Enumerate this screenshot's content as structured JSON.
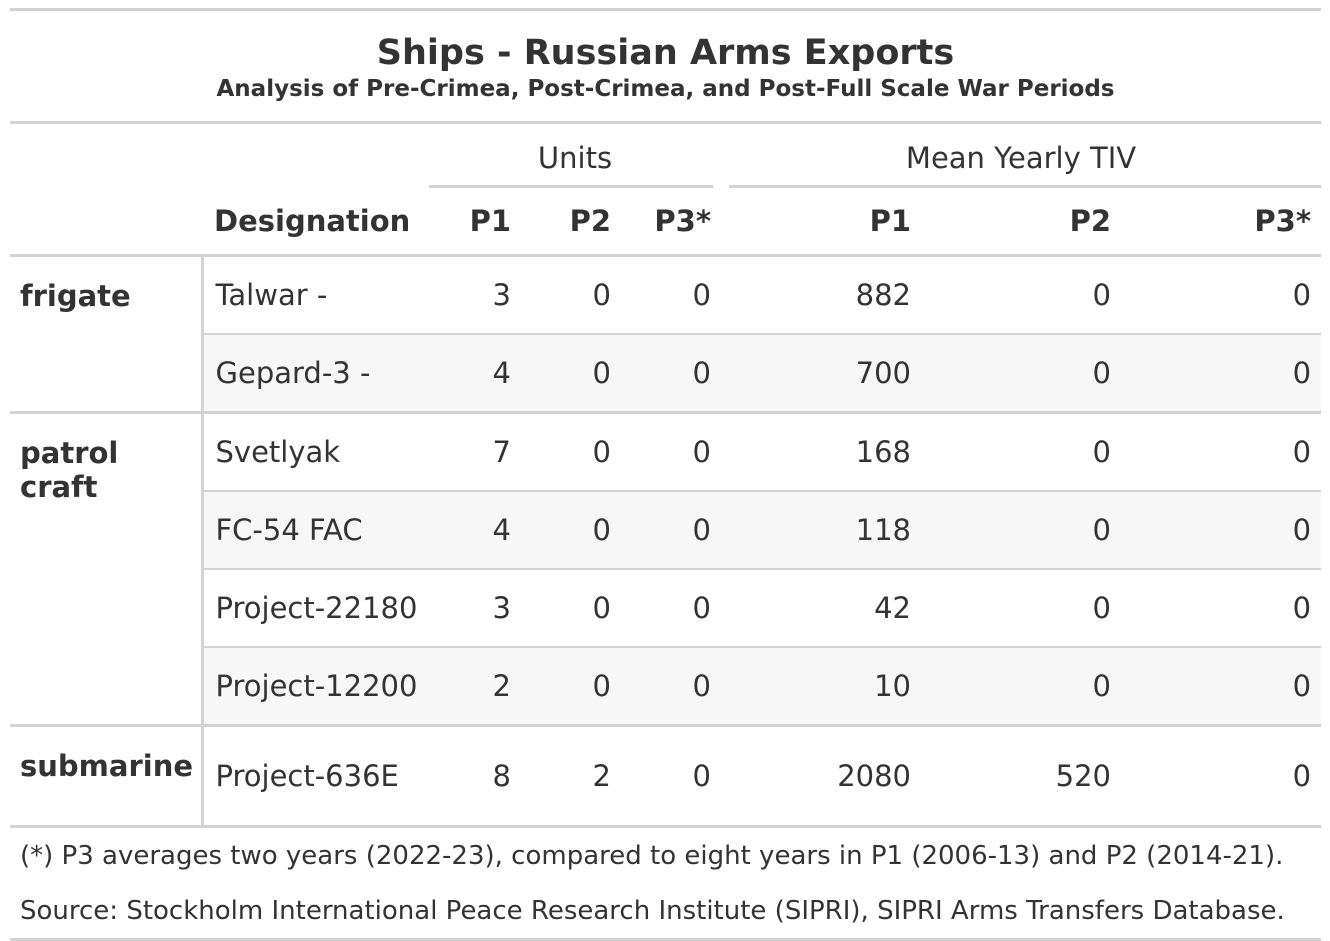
{
  "title": "Ships - Russian Arms Exports",
  "subtitle": "Analysis of Pre-Crimea, Post-Crimea, and Post-Full Scale War Periods",
  "spanners": {
    "units": "Units",
    "tiv": "Mean Yearly TIV"
  },
  "columns": {
    "designation": "Designation",
    "u_p1": "P1",
    "u_p2": "P2",
    "u_p3": "P3*",
    "t_p1": "P1",
    "t_p2": "P2",
    "t_p3": "P3*"
  },
  "groups": [
    {
      "name": "frigate",
      "rows": [
        {
          "designation": "Talwar -",
          "u_p1": "3",
          "u_p2": "0",
          "u_p3": "0",
          "t_p1": "882",
          "t_p2": "0",
          "t_p3": "0"
        },
        {
          "designation": "Gepard-3 -",
          "u_p1": "4",
          "u_p2": "0",
          "u_p3": "0",
          "t_p1": "700",
          "t_p2": "0",
          "t_p3": "0"
        }
      ]
    },
    {
      "name": "patrol craft",
      "rows": [
        {
          "designation": "Svetlyak",
          "u_p1": "7",
          "u_p2": "0",
          "u_p3": "0",
          "t_p1": "168",
          "t_p2": "0",
          "t_p3": "0"
        },
        {
          "designation": "FC-54 FAC",
          "u_p1": "4",
          "u_p2": "0",
          "u_p3": "0",
          "t_p1": "118",
          "t_p2": "0",
          "t_p3": "0"
        },
        {
          "designation": "Project-22180",
          "u_p1": "3",
          "u_p2": "0",
          "u_p3": "0",
          "t_p1": "42",
          "t_p2": "0",
          "t_p3": "0"
        },
        {
          "designation": "Project-12200",
          "u_p1": "2",
          "u_p2": "0",
          "u_p3": "0",
          "t_p1": "10",
          "t_p2": "0",
          "t_p3": "0"
        }
      ]
    },
    {
      "name": "submarine",
      "rows": [
        {
          "designation": "Project-636E",
          "u_p1": "8",
          "u_p2": "2",
          "u_p3": "0",
          "t_p1": "2080",
          "t_p2": "520",
          "t_p3": "0"
        }
      ]
    }
  ],
  "footnote": "(*) P3 averages two years (2022-23), compared to eight years in P1 (2006-13) and P2 (2014-21).",
  "source": "Source: Stockholm International Peace Research Institute (SIPRI), SIPRI Arms Transfers Database."
}
